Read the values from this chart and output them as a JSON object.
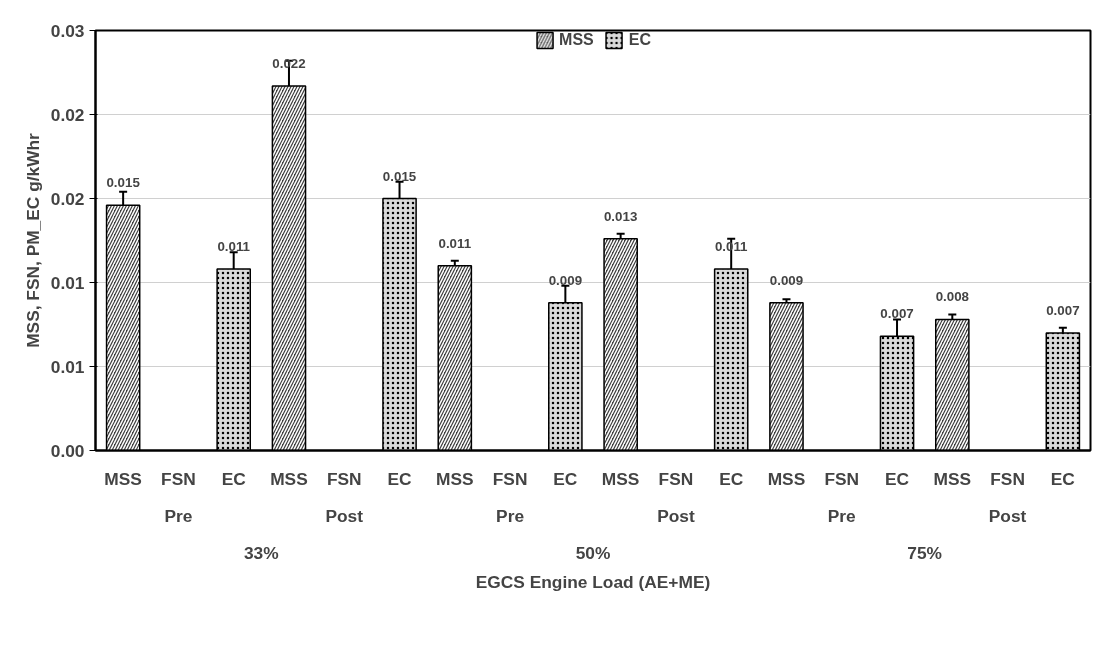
{
  "chart_data": {
    "type": "bar",
    "xlabel": "EGCS Engine Load (AE+ME)",
    "ylabel": "MSS, FSN, PM_EC g/kWhr",
    "categories": [
      "MSS",
      "FSN",
      "EC",
      "MSS",
      "FSN",
      "EC",
      "MSS",
      "FSN",
      "EC",
      "MSS",
      "FSN",
      "EC",
      "MSS",
      "FSN",
      "EC",
      "MSS",
      "FSN",
      "EC"
    ],
    "series": [
      {
        "name": "MSS",
        "color": "#404040",
        "values": [
          0.0146,
          null,
          null,
          0.0217,
          null,
          null,
          0.011,
          null,
          null,
          0.0126,
          null,
          null,
          0.0088,
          null,
          null,
          0.0078,
          null,
          null
        ],
        "errors": [
          0.0008,
          null,
          null,
          0.0015,
          null,
          null,
          0.0003,
          null,
          null,
          0.0003,
          null,
          null,
          0.0002,
          null,
          null,
          0.0003,
          null,
          null
        ],
        "value_labels": [
          "0.015",
          null,
          null,
          "0.022",
          null,
          null,
          "0.011",
          null,
          null,
          "0.013",
          null,
          null,
          "0.009",
          null,
          null,
          "0.008",
          null,
          null
        ]
      },
      {
        "name": "EC",
        "color": "#d9d9d9",
        "values": [
          null,
          null,
          0.0108,
          null,
          null,
          0.015,
          null,
          null,
          0.0088,
          null,
          null,
          0.0108,
          null,
          null,
          0.0068,
          null,
          null,
          0.007
        ],
        "errors": [
          null,
          null,
          0.001,
          null,
          null,
          0.001,
          null,
          null,
          0.001,
          null,
          null,
          0.0018,
          null,
          null,
          0.001,
          null,
          null,
          0.0003
        ],
        "value_labels": [
          null,
          null,
          "0.011",
          null,
          null,
          "0.015",
          null,
          null,
          "0.009",
          null,
          null,
          "0.011",
          null,
          null,
          "0.007",
          null,
          null,
          "0.007"
        ]
      }
    ],
    "annotations": [
      "Pre",
      "Post",
      "Pre",
      "Post",
      "Pre",
      "Post",
      "33%",
      "50%",
      "75%"
    ],
    "ylim": [
      0,
      0.025
    ],
    "yticks": [
      {
        "value": 0,
        "label": "0.00"
      },
      {
        "value": 0.005,
        "label": "0.01"
      },
      {
        "value": 0.01,
        "label": "0.01"
      },
      {
        "value": 0.015,
        "label": "0.02"
      },
      {
        "value": 0.02,
        "label": "0.02"
      },
      {
        "value": 0.025,
        "label": "0.03"
      }
    ],
    "grid": "y",
    "legend": "top"
  }
}
